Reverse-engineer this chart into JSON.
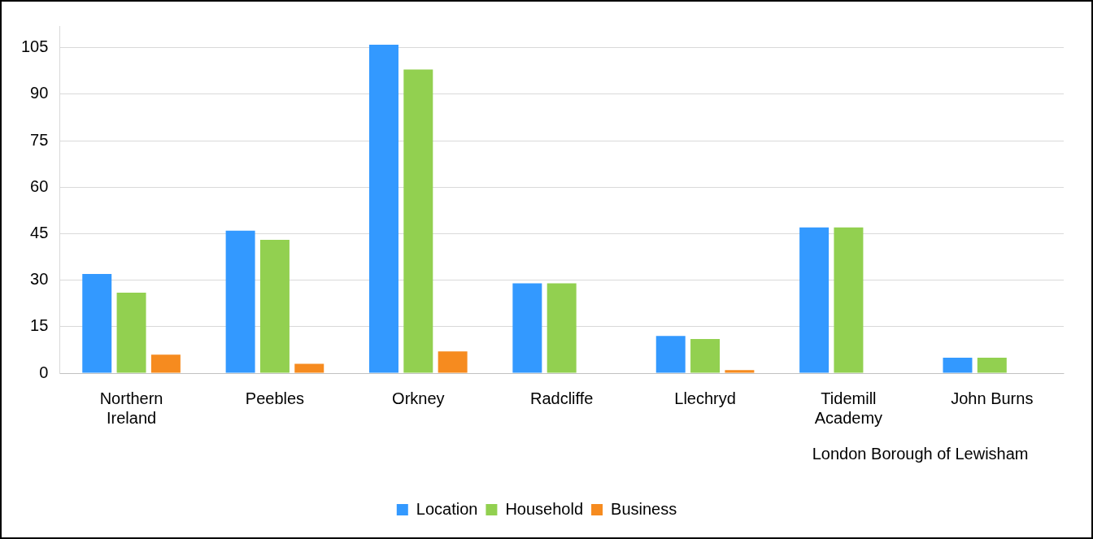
{
  "chart_data": {
    "type": "bar",
    "categories": [
      "Northern Ireland",
      "Peebles",
      "Orkney",
      "Radcliffe",
      "Llechryd",
      "Tidemill Academy",
      "John Burns"
    ],
    "series": [
      {
        "name": "Location",
        "color": "#3399ff",
        "values": [
          32,
          46,
          106,
          29,
          12,
          47,
          5
        ]
      },
      {
        "name": "Household",
        "color": "#92d050",
        "values": [
          26,
          43,
          98,
          29,
          11,
          47,
          5
        ]
      },
      {
        "name": "Business",
        "color": "#f68b1f",
        "values": [
          6,
          3,
          7,
          null,
          1,
          null,
          null
        ]
      }
    ],
    "annotations": [
      "London Borough of Lewisham"
    ],
    "ylim": [
      0,
      112
    ],
    "yticks": [
      0,
      15,
      30,
      45,
      60,
      75,
      90,
      105
    ],
    "grid": "y",
    "legend": "bottom"
  }
}
